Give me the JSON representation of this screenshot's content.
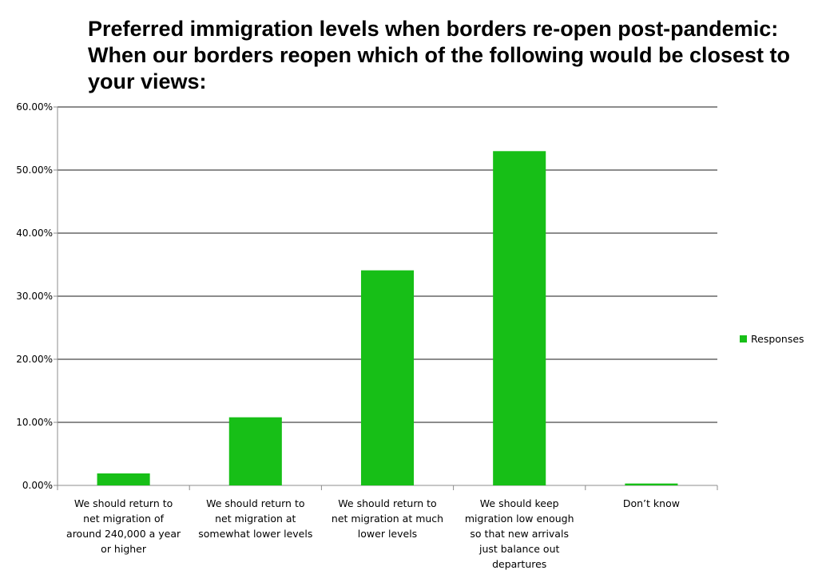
{
  "chart_data": {
    "type": "bar",
    "title": "Preferred immigration levels when borders re-open post-pandemic: When our borders reopen which of the following would be closest to your views:",
    "categories": [
      [
        "We should return to",
        "net migration of",
        "around 240,000 a year",
        "or higher"
      ],
      [
        "We should return to",
        "net migration at",
        "somewhat lower levels"
      ],
      [
        "We should return to",
        "net migration at much",
        "lower levels"
      ],
      [
        "We should keep",
        "migration low enough",
        "so that new arrivals",
        "just balance out",
        "departures"
      ],
      [
        "Don’t know"
      ]
    ],
    "series": [
      {
        "name": "Responses",
        "color": "#17bf17",
        "values": [
          0.019,
          0.108,
          0.341,
          0.53,
          0.003
        ]
      }
    ],
    "ylim": [
      0,
      0.6
    ],
    "yticks": [
      0,
      0.1,
      0.2,
      0.3,
      0.4,
      0.5,
      0.6
    ],
    "ytick_labels": [
      "0.00%",
      "10.00%",
      "20.00%",
      "30.00%",
      "40.00%",
      "50.00%",
      "60.00%"
    ],
    "xlabel": "",
    "ylabel": "",
    "grid": true,
    "legend_position": "right"
  }
}
